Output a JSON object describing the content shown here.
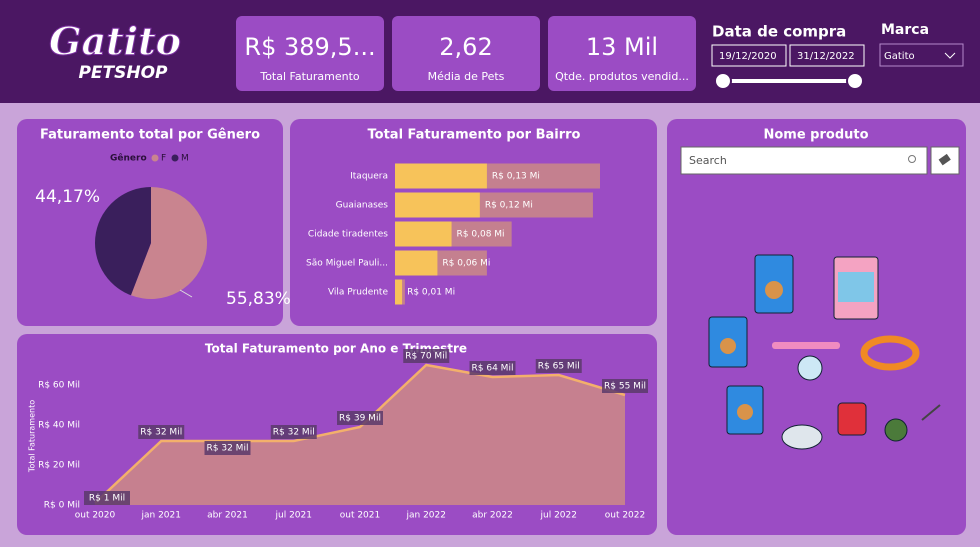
{
  "header": {
    "logo_title": "Gatito",
    "logo_subtitle": "PETSHOP"
  },
  "cards": [
    {
      "value": "R$ 389,5...",
      "label": "Total Faturamento"
    },
    {
      "value": "2,62",
      "label": "Média de Pets"
    },
    {
      "value": "13 Mil",
      "label": "Qtde. produtos vendid..."
    }
  ],
  "filters": {
    "date_title": "Data de compra",
    "start_date": "19/12/2020",
    "end_date": "31/12/2022",
    "brand_title": "Marca",
    "brand_value": "Gatito"
  },
  "product_panel": {
    "title": "Nome produto",
    "search_placeholder": "Search"
  },
  "chart_data": [
    {
      "type": "pie",
      "title": "Faturamento total por Gênero",
      "legend_title": "Gênero",
      "categories": [
        "F",
        "M"
      ],
      "values": [
        55.83,
        44.17
      ],
      "value_labels": [
        "55,83%",
        "44,17%"
      ],
      "colors": [
        "#c9848f",
        "#3a1f5c"
      ]
    },
    {
      "type": "hbar",
      "title": "Total Faturamento por Bairro",
      "categories": [
        "Itaquera",
        "Guaianases",
        "Cidade tiradentes",
        "São Miguel Pauli...",
        "Vila Prudente"
      ],
      "series": [
        {
          "color": "#c4808f",
          "values": [
            0.29,
            0.28,
            0.165,
            0.13,
            0.014
          ]
        },
        {
          "color": "#f7c35a",
          "values": [
            0.13,
            0.12,
            0.08,
            0.06,
            0.01
          ],
          "value_labels": [
            "R$ 0,13 Mi",
            "R$ 0,12 Mi",
            "R$ 0,08 Mi",
            "R$ 0,06 Mi",
            "R$ 0,01 Mi"
          ]
        }
      ]
    },
    {
      "type": "area",
      "title": "Total Faturamento por Ano e Trimestre",
      "y_label": "Total Faturamento",
      "categories": [
        "out 2020",
        "jan 2021",
        "abr 2021",
        "jul 2021",
        "out 2021",
        "jan 2022",
        "abr 2022",
        "jul 2022",
        "out 2022"
      ],
      "values": [
        1,
        32,
        32,
        32,
        39,
        70,
        64,
        65,
        55
      ],
      "value_labels": [
        "R$ 1 Mil",
        "R$ 32 Mil",
        "R$ 32 Mil",
        "R$ 32 Mil",
        "R$ 39 Mil",
        "R$ 70 Mil",
        "R$ 64 Mil",
        "R$ 65 Mil",
        "R$ 55 Mil"
      ],
      "color": "#c6808f",
      "line_color": "#f3b06b",
      "ylim": [
        0,
        70
      ],
      "yticks": [
        {
          "value": 0,
          "label": "R$ 0 Mil"
        },
        {
          "value": 20,
          "label": "R$ 20 Mil"
        },
        {
          "value": 40,
          "label": "R$ 40 Mil"
        },
        {
          "value": 60,
          "label": "R$ 60 Mil"
        }
      ]
    }
  ]
}
